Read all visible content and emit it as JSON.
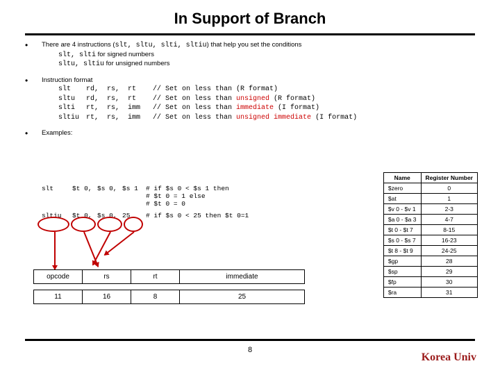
{
  "title": "In Support of Branch",
  "bullet1": {
    "lead": "There are 4 instructions (",
    "codes": "slt, sltu, slti, sltiu",
    "tail": ") that help you set the conditions",
    "l2a": "slt, slti",
    "l2b": " for signed numbers",
    "l3a": "sltu, sltiu",
    "l3b": " for unsigned numbers"
  },
  "bullet2": {
    "head": "Instruction format",
    "rows": [
      {
        "op": "slt",
        "a": "rd,",
        "b": "rs,",
        "c": "rt",
        "cm": "// Set on less than (R format)",
        "red": ""
      },
      {
        "op": "sltu",
        "a": "rd,",
        "b": "rs,",
        "c": "rt",
        "cm": "// Set on less than ",
        "red": "unsigned",
        "tail": " (R format)"
      },
      {
        "op": "slti",
        "a": "rt,",
        "b": "rs,",
        "c": "imm",
        "cm": "// Set on less than ",
        "red": "immediate",
        "tail": " (I format)"
      },
      {
        "op": "sltiu",
        "a": "rt,",
        "b": "rs,",
        "c": "imm",
        "cm": "// Set on less than ",
        "red": "unsigned immediate",
        "tail": " (I format)"
      }
    ]
  },
  "bullet3": "Examples:",
  "examples": {
    "l1": {
      "op": "slt",
      "r1": "$t 0,",
      "r2": "$s 0,",
      "r3": "$s 1",
      "c": "# if $s 0 < $s 1     then"
    },
    "l2": {
      "c": "# $t 0 = 1         else"
    },
    "l3": {
      "c": "# $t 0 = 0"
    },
    "l4": {
      "op": "sltiu",
      "r1": "$t 0,",
      "r2": "$s 0,",
      "r3": "25",
      "c": "# if $s 0 < 25 then $t 0=1"
    }
  },
  "reg": {
    "h1": "Name",
    "h2": "Register Number",
    "rows": [
      [
        "$zero",
        "0"
      ],
      [
        "$at",
        "1"
      ],
      [
        "$v 0 - $v 1",
        "2-3"
      ],
      [
        "$a 0 - $a 3",
        "4-7"
      ],
      [
        "$t 0 - $t 7",
        "8-15"
      ],
      [
        "$s 0 - $s 7",
        "16-23"
      ],
      [
        "$t 8 - $t 9",
        "24-25"
      ],
      [
        "$gp",
        "28"
      ],
      [
        "$sp",
        "29"
      ],
      [
        "$fp",
        "30"
      ],
      [
        "$ra",
        "31"
      ]
    ]
  },
  "instr": {
    "h": [
      "opcode",
      "rs",
      "rt",
      "immediate"
    ],
    "v": [
      "11",
      "16",
      "8",
      "25"
    ]
  },
  "page": "8",
  "footer": "Korea Univ"
}
